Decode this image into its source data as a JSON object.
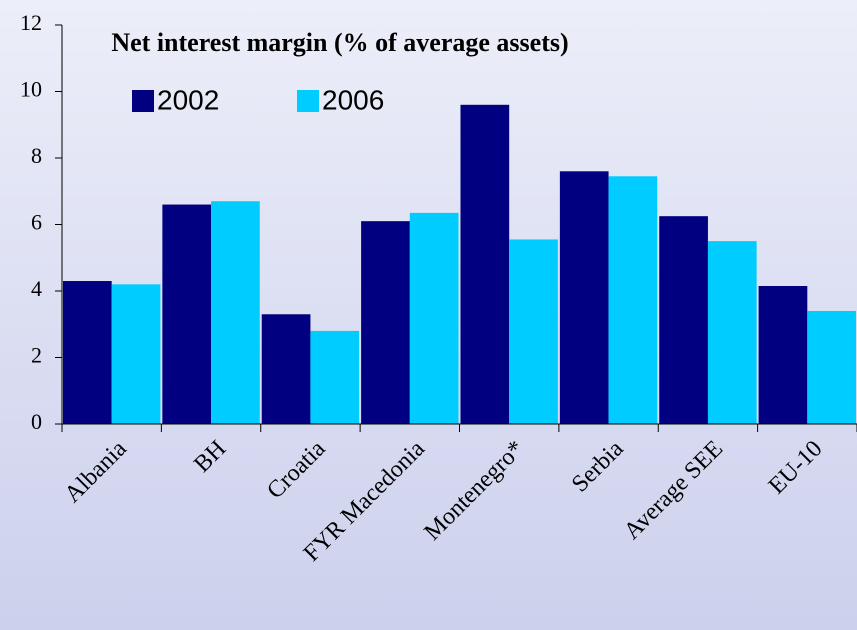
{
  "chart_data": {
    "type": "bar",
    "title": "Net interest margin (% of average assets)",
    "categories": [
      "Albania",
      "BH",
      "Croatia",
      "FYR Macedonia",
      "Montenegro*",
      "Serbia",
      "Average SEE",
      "EU-10"
    ],
    "series": [
      {
        "name": "2002",
        "color": "#000080",
        "values": [
          4.3,
          6.6,
          3.3,
          6.1,
          9.6,
          7.6,
          6.25,
          4.15
        ]
      },
      {
        "name": "2006",
        "color": "#00ccff",
        "values": [
          4.2,
          6.7,
          2.8,
          6.35,
          5.55,
          7.45,
          5.5,
          3.4
        ]
      }
    ],
    "ylim": [
      0,
      12
    ],
    "yticks": [
      0,
      2,
      4,
      6,
      8,
      10,
      12
    ]
  }
}
